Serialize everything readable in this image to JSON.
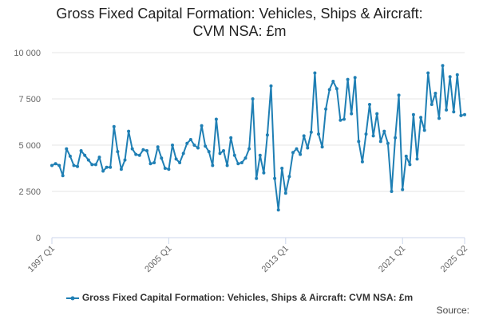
{
  "title_line1": "Gross Fixed Capital Formation: Vehicles, Ships & Aircraft:",
  "title_line2": "CVM NSA: £m",
  "source_label": "Source:",
  "colors": {
    "series": "#1f7fb4",
    "grid": "#e6e6e6",
    "axis": "#ccd6eb"
  },
  "chart_data": {
    "type": "line",
    "title": "Gross Fixed Capital Formation: Vehicles, Ships & Aircraft: CVM NSA: £m",
    "xlabel": "",
    "ylabel": "",
    "ylim": [
      0,
      10000
    ],
    "y_ticks": [
      0,
      2500,
      5000,
      7500,
      10000
    ],
    "y_tick_labels": [
      "0",
      "2 500",
      "5 000",
      "7 500",
      "10 000"
    ],
    "x_tick_labels": [
      "1997 Q1",
      "2005 Q1",
      "2013 Q1",
      "2021 Q1",
      "2025 Q2"
    ],
    "grid": true,
    "legend_position": "bottom",
    "series": [
      {
        "name": "Gross Fixed Capital Formation: Vehicles, Ships & Aircraft: CVM NSA: £m",
        "x": [
          "1997 Q1",
          "1997 Q2",
          "1997 Q3",
          "1997 Q4",
          "1998 Q1",
          "1998 Q2",
          "1998 Q3",
          "1998 Q4",
          "1999 Q1",
          "1999 Q2",
          "1999 Q3",
          "1999 Q4",
          "2000 Q1",
          "2000 Q2",
          "2000 Q3",
          "2000 Q4",
          "2001 Q1",
          "2001 Q2",
          "2001 Q3",
          "2001 Q4",
          "2002 Q1",
          "2002 Q2",
          "2002 Q3",
          "2002 Q4",
          "2003 Q1",
          "2003 Q2",
          "2003 Q3",
          "2003 Q4",
          "2004 Q1",
          "2004 Q2",
          "2004 Q3",
          "2004 Q4",
          "2005 Q1",
          "2005 Q2",
          "2005 Q3",
          "2005 Q4",
          "2006 Q1",
          "2006 Q2",
          "2006 Q3",
          "2006 Q4",
          "2007 Q1",
          "2007 Q2",
          "2007 Q3",
          "2007 Q4",
          "2008 Q1",
          "2008 Q2",
          "2008 Q3",
          "2008 Q4",
          "2009 Q1",
          "2009 Q2",
          "2009 Q3",
          "2009 Q4",
          "2010 Q1",
          "2010 Q2",
          "2010 Q3",
          "2010 Q4",
          "2011 Q1",
          "2011 Q2",
          "2011 Q3",
          "2011 Q4",
          "2012 Q1",
          "2012 Q2",
          "2012 Q3",
          "2012 Q4",
          "2013 Q1",
          "2013 Q2",
          "2013 Q3",
          "2013 Q4",
          "2014 Q1",
          "2014 Q2",
          "2014 Q3",
          "2014 Q4",
          "2015 Q1",
          "2015 Q2",
          "2015 Q3",
          "2015 Q4",
          "2016 Q1",
          "2016 Q2",
          "2016 Q3",
          "2016 Q4",
          "2017 Q1",
          "2017 Q2",
          "2017 Q3",
          "2017 Q4",
          "2018 Q1",
          "2018 Q2",
          "2018 Q3",
          "2018 Q4",
          "2019 Q1",
          "2019 Q2",
          "2019 Q3",
          "2019 Q4",
          "2020 Q1",
          "2020 Q2",
          "2020 Q3",
          "2020 Q4",
          "2021 Q1",
          "2021 Q2",
          "2021 Q3",
          "2021 Q4",
          "2022 Q1",
          "2022 Q2",
          "2022 Q3",
          "2022 Q4",
          "2023 Q1",
          "2023 Q2",
          "2023 Q3",
          "2023 Q4",
          "2024 Q1",
          "2024 Q2",
          "2024 Q3",
          "2024 Q4",
          "2025 Q1",
          "2025 Q2"
        ],
        "values": [
          3900,
          4000,
          3900,
          3350,
          4800,
          4400,
          3900,
          3850,
          4700,
          4450,
          4200,
          3950,
          3950,
          4350,
          3600,
          3800,
          3800,
          6000,
          4650,
          3700,
          4200,
          5750,
          4800,
          4500,
          4450,
          4750,
          4700,
          4000,
          4050,
          4900,
          4300,
          3750,
          3700,
          5000,
          4250,
          4050,
          4550,
          5100,
          5300,
          5000,
          4850,
          6050,
          4950,
          4650,
          3900,
          6400,
          4550,
          4700,
          3900,
          5400,
          4450,
          4000,
          4050,
          4300,
          4800,
          7500,
          3200,
          4450,
          3500,
          5550,
          8200,
          3200,
          1500,
          3750,
          2400,
          3300,
          4600,
          4800,
          4500,
          5500,
          4850,
          5700,
          8900,
          5600,
          4900,
          6950,
          8000,
          8450,
          8050,
          6350,
          6400,
          8550,
          6700,
          8650,
          5200,
          4100,
          5600,
          7200,
          5500,
          6700,
          5200,
          5750,
          5100,
          2500,
          5400,
          7700,
          2600,
          4400,
          3950,
          6650,
          4250,
          6500,
          5800,
          8900,
          7200,
          7800,
          6450,
          9300,
          6900,
          8700,
          6800,
          8800,
          6600,
          6650
        ]
      }
    ]
  }
}
